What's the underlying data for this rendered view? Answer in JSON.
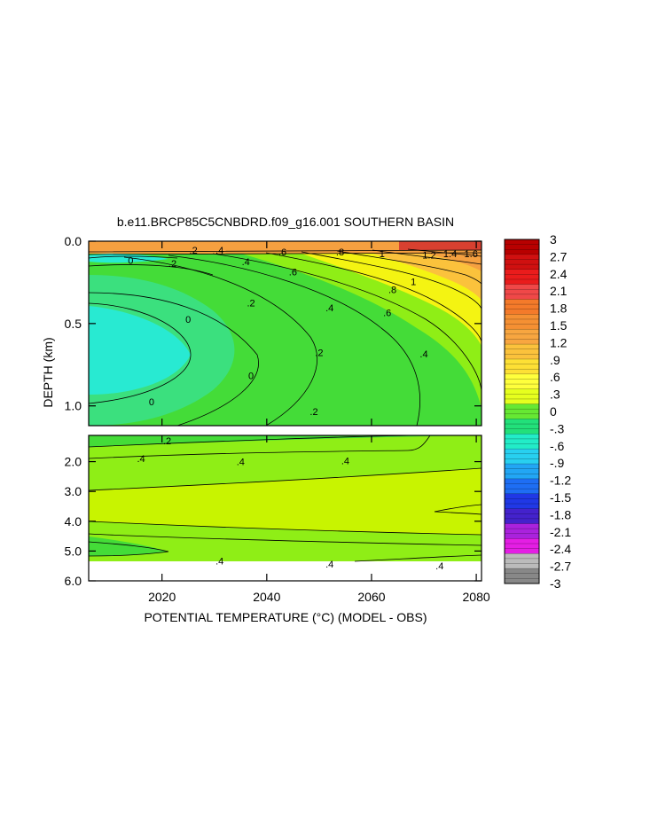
{
  "chart_data": {
    "type": "heatmap",
    "title": "b.e11.BRCP85C5CNBDRD.f09_g16.001 SOUTHERN BASIN",
    "xlabel": "POTENTIAL TEMPERATURE (°C) (MODEL - OBS)",
    "ylabel": "DEPTH (km)",
    "x_range": [
      2006,
      2081
    ],
    "x_ticks": [
      "2020",
      "2040",
      "2060",
      "2080"
    ],
    "upper_panel": {
      "ylim": [
        1.12,
        0.0
      ],
      "y_ticks": [
        "0.0",
        "0.5",
        "1.0"
      ],
      "contour_labels": [
        {
          "text": "0",
          "x": 2014,
          "y": 0.12
        },
        {
          "text": ".2",
          "x": 2022,
          "y": 0.14
        },
        {
          "text": ".4",
          "x": 2036,
          "y": 0.13
        },
        {
          "text": ".6",
          "x": 2045,
          "y": 0.19
        },
        {
          "text": ".6",
          "x": 2063,
          "y": 0.44
        },
        {
          "text": ".8",
          "x": 2064,
          "y": 0.3
        },
        {
          "text": "1",
          "x": 2068,
          "y": 0.25
        },
        {
          "text": ".2",
          "x": 2037,
          "y": 0.38
        },
        {
          "text": ".4",
          "x": 2052,
          "y": 0.41
        },
        {
          "text": ".2",
          "x": 2050,
          "y": 0.68
        },
        {
          "text": ".4",
          "x": 2070,
          "y": 0.69
        },
        {
          "text": "0",
          "x": 2025,
          "y": 0.48
        },
        {
          "text": "0",
          "x": 2037,
          "y": 0.82
        },
        {
          "text": "0",
          "x": 2018,
          "y": 0.98
        },
        {
          "text": ".2",
          "x": 2049,
          "y": 1.04
        },
        {
          "text": ".2",
          "x": 2026,
          "y": 0.06
        },
        {
          "text": ".4",
          "x": 2031,
          "y": 0.06
        },
        {
          "text": ".6",
          "x": 2043,
          "y": 0.07
        },
        {
          "text": ".8",
          "x": 2054,
          "y": 0.07
        },
        {
          "text": "1",
          "x": 2062,
          "y": 0.08
        },
        {
          "text": "1.2",
          "x": 2071,
          "y": 0.09
        },
        {
          "text": "1.4",
          "x": 2075,
          "y": 0.08
        },
        {
          "text": "1.6",
          "x": 2079,
          "y": 0.08
        }
      ]
    },
    "lower_panel": {
      "ylim": [
        6.0,
        1.12
      ],
      "y_ticks": [
        "2.0",
        "3.0",
        "4.0",
        "5.0",
        "6.0"
      ],
      "contour_labels": [
        {
          "text": ".2",
          "x": 2021,
          "y": 1.33
        },
        {
          "text": ".4",
          "x": 2016,
          "y": 1.93
        },
        {
          "text": ".4",
          "x": 2035,
          "y": 2.03
        },
        {
          "text": ".4",
          "x": 2055,
          "y": 2.0
        },
        {
          "text": ".4",
          "x": 2031,
          "y": 5.36
        },
        {
          "text": ".4",
          "x": 2052,
          "y": 5.46
        },
        {
          "text": ".4",
          "x": 2073,
          "y": 5.52
        }
      ]
    },
    "colorbar": {
      "levels": [
        "3",
        "2.7",
        "2.4",
        "2.1",
        "1.8",
        "1.5",
        "1.2",
        ".9",
        ".6",
        ".3",
        "0",
        "-.3",
        "-.6",
        "-.9",
        "-1.2",
        "-1.5",
        "-1.8",
        "-2.1",
        "-2.4",
        "-2.7",
        "-3"
      ],
      "colors": [
        "#b80000",
        "#d01010",
        "#ea1c1c",
        "#f04848",
        "#f47a2a",
        "#f59033",
        "#f8a640",
        "#fbc23c",
        "#fde035",
        "#ffff3c",
        "#e6ff1e",
        "#66e833",
        "#22e07a",
        "#22ecc8",
        "#28d0f0",
        "#22a6f4",
        "#1e6ef4",
        "#2038e6",
        "#4422cc",
        "#aa22dd",
        "#e41ee4",
        "#bbbbbb",
        "#888888"
      ]
    },
    "colors": {
      "deep_cool": "#28ead2",
      "cool": "#3be07e",
      "neutral_green": "#44dc38",
      "light_green": "#8fee16",
      "yellow_green": "#c8f400",
      "yellow": "#f4f412",
      "warm": "#fbc23c",
      "orange": "#f5a040",
      "hot": "#d84030"
    }
  }
}
